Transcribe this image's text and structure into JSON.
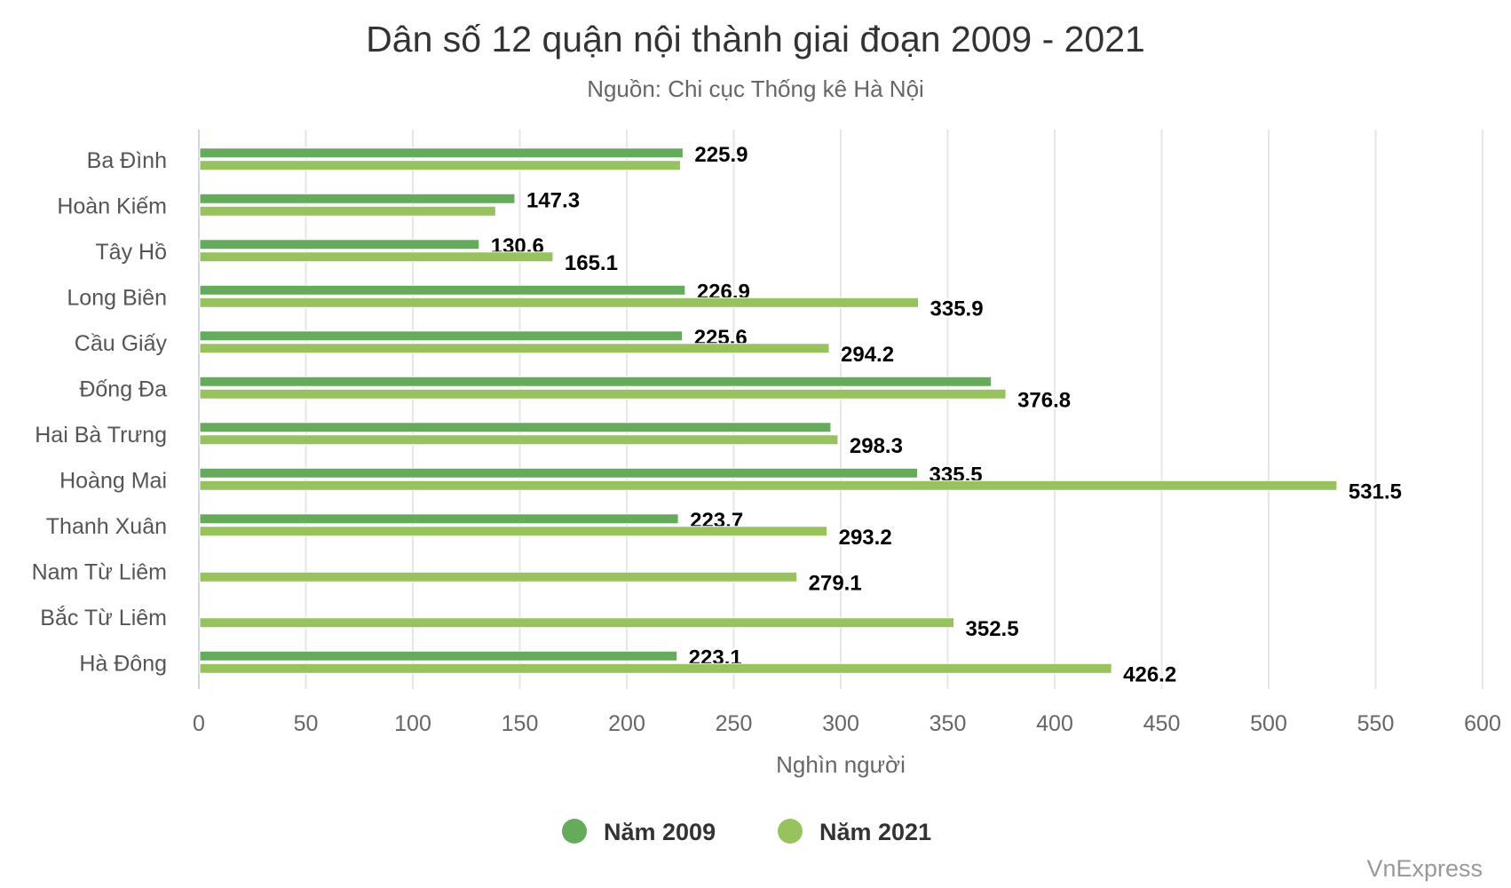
{
  "chart_data": {
    "type": "bar",
    "orientation": "horizontal",
    "title": "Dân số 12 quận nội thành giai đoạn 2009 - 2021",
    "subtitle": "Nguồn: Chi cục Thống kê Hà Nội",
    "xlabel": "Nghìn người",
    "ylabel": "",
    "xlim": [
      0,
      600
    ],
    "xticks": [
      "0",
      "50",
      "100",
      "150",
      "200",
      "250",
      "300",
      "350",
      "400",
      "450",
      "500",
      "550",
      "600"
    ],
    "grid": true,
    "legend_position": "bottom",
    "categories": [
      "Ba Đình",
      "Hoàn Kiếm",
      "Tây Hồ",
      "Long Biên",
      "Cầu Giấy",
      "Đống Đa",
      "Hai Bà Trưng",
      "Hoàng Mai",
      "Thanh Xuân",
      "Nam Từ Liêm",
      "Bắc Từ Liêm",
      "Hà Đông"
    ],
    "series": [
      {
        "name": "Năm 2009",
        "color": "#66ab5c",
        "values": [
          225.9,
          147.3,
          130.6,
          226.9,
          225.6,
          370,
          295,
          335.5,
          223.7,
          null,
          null,
          223.1
        ],
        "labels": [
          "225.9",
          "147.3",
          "130.6",
          "226.9",
          "225.6",
          "",
          "",
          "335.5",
          "223.7",
          "",
          "",
          "223.1"
        ]
      },
      {
        "name": "Năm 2021",
        "color": "#97c25e",
        "values": [
          224.7,
          138.3,
          165.1,
          335.9,
          294.2,
          376.8,
          298.3,
          531.5,
          293.2,
          279.1,
          352.5,
          426.2
        ],
        "labels": [
          "",
          "",
          "165.1",
          "335.9",
          "294.2",
          "376.8",
          "298.3",
          "531.5",
          "293.2",
          "279.1",
          "352.5",
          "426.2"
        ]
      }
    ]
  },
  "credit": "VnExpress"
}
